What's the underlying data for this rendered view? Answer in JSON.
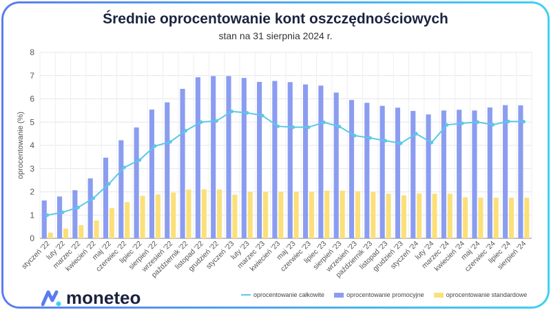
{
  "chart_data": {
    "type": "bar+line",
    "title": "Średnie oprocentowanie kont oszczędnościowych",
    "subtitle": "stan na 31 sierpnia 2024 r.",
    "ylabel": "oprocentowanie (%)",
    "ylim": [
      0,
      8
    ],
    "yticks": [
      0,
      1,
      2,
      3,
      4,
      5,
      6,
      7,
      8
    ],
    "grid": true,
    "legend_position": "bottom-right",
    "categories": [
      "styczeń '22",
      "luty '22",
      "marzec '22",
      "kwiecień '22",
      "maj '22",
      "czerwiec '22",
      "lipiec '22",
      "sierpień '22",
      "wrzesień '22",
      "październik '22",
      "listopad '22",
      "grudzień '22",
      "styczeń '23",
      "luty '23",
      "marzec '23",
      "kwiecień '23",
      "maj '23",
      "czerwiec '23",
      "lipiec '23",
      "sierpień '23",
      "wrzesień '23",
      "październik '23",
      "listopad '23",
      "grudzień '23",
      "styczeń '24",
      "luty '24",
      "marzec '24",
      "kwiecień '24",
      "maj '24",
      "czerwiec '24",
      "lipiec '24",
      "sierpień '24"
    ],
    "series": [
      {
        "name": "oprocentowanie całkowite",
        "type": "line",
        "color": "#5ac8e8",
        "values": [
          1.0,
          1.12,
          1.33,
          1.73,
          2.34,
          3.05,
          3.37,
          3.97,
          4.15,
          4.63,
          5.0,
          5.05,
          5.46,
          5.4,
          5.28,
          4.82,
          4.78,
          4.78,
          4.99,
          4.81,
          4.42,
          4.32,
          4.2,
          4.09,
          4.5,
          4.12,
          4.88,
          4.95,
          5.0,
          4.89,
          5.03,
          5.02
        ]
      },
      {
        "name": "oprocentowanie promocyjne",
        "type": "bar",
        "color": "#8b9df0",
        "values": [
          1.63,
          1.8,
          2.07,
          2.58,
          3.47,
          4.22,
          4.77,
          5.54,
          5.85,
          6.43,
          6.93,
          6.98,
          6.98,
          6.9,
          6.73,
          6.77,
          6.72,
          6.62,
          6.57,
          6.27,
          5.95,
          5.83,
          5.7,
          5.62,
          5.48,
          5.33,
          5.5,
          5.53,
          5.5,
          5.63,
          5.73,
          5.72
        ]
      },
      {
        "name": "oprocentowanie standardowe",
        "type": "bar",
        "color": "#fbe07a",
        "values": [
          0.25,
          0.42,
          0.57,
          0.77,
          1.3,
          1.56,
          1.83,
          1.89,
          1.97,
          2.1,
          2.11,
          2.1,
          1.88,
          2.0,
          2.0,
          2.0,
          2.0,
          2.0,
          2.05,
          2.05,
          2.03,
          2.0,
          1.92,
          1.85,
          1.93,
          1.92,
          1.92,
          1.77,
          1.75,
          1.75,
          1.75,
          1.75
        ]
      }
    ]
  },
  "brand": {
    "name": "moneteo"
  }
}
